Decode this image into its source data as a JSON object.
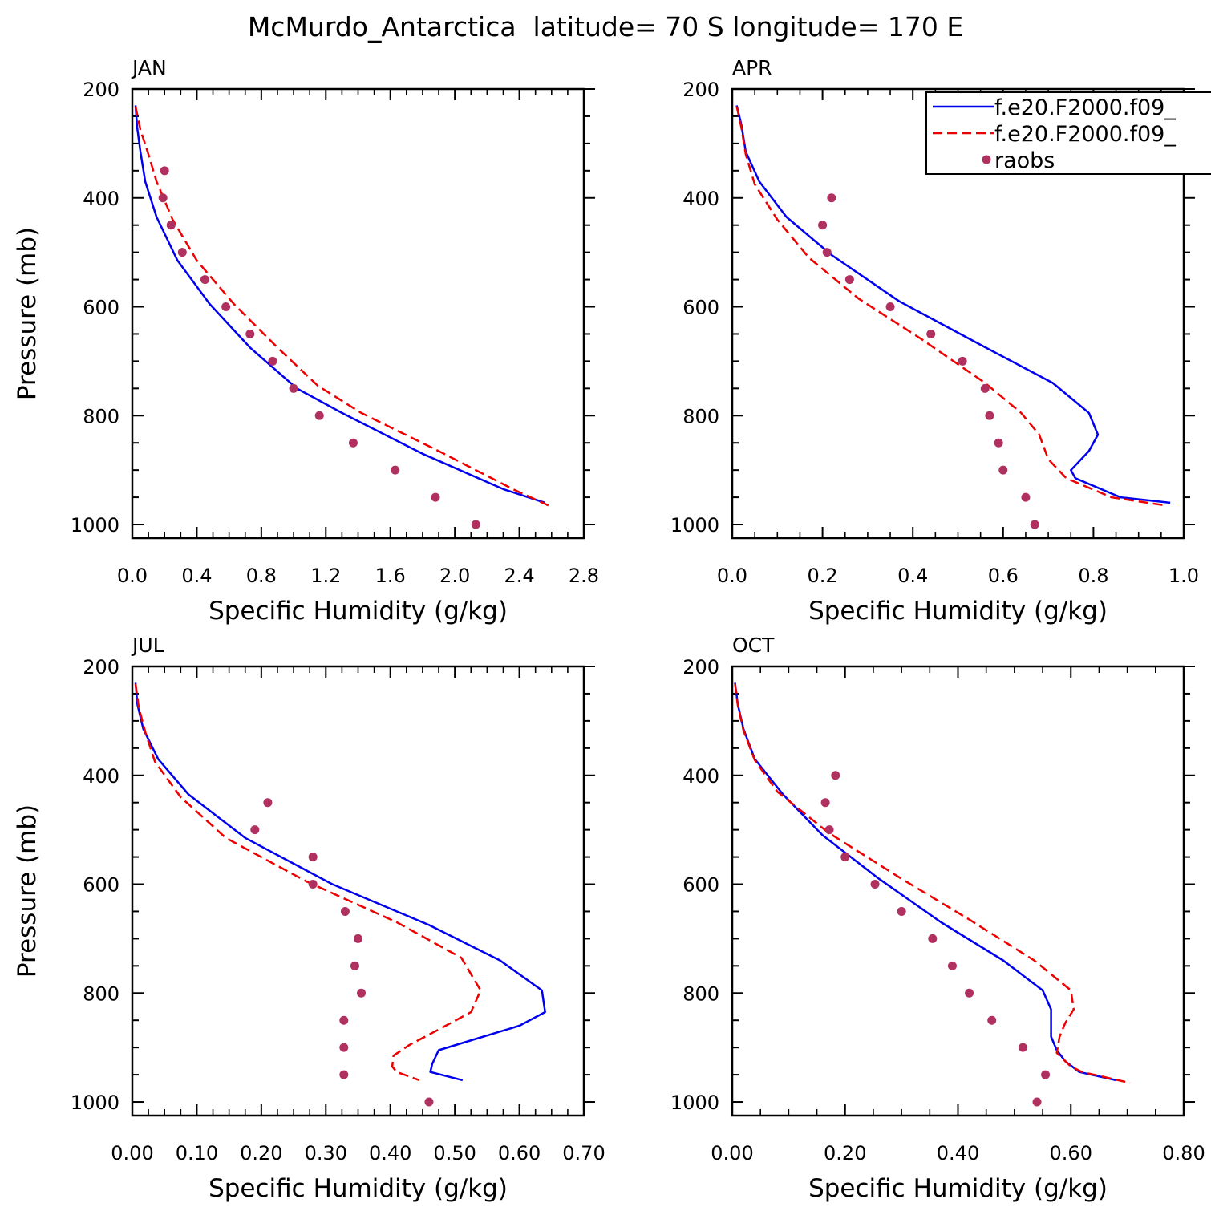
{
  "figure": {
    "title": "McMurdo_Antarctica  latitude= 70 S longitude= 170 E"
  },
  "legend": {
    "entries": [
      {
        "label": "f.e20.F2000.f09_",
        "color": "#0000ee",
        "style": "solid"
      },
      {
        "label": "f.e20.F2000.f09_",
        "color": "#ee0000",
        "style": "dashed"
      },
      {
        "label": "raobs",
        "color": "#b03060",
        "style": "marker"
      }
    ]
  },
  "chart_data": [
    {
      "type": "line",
      "panel": "JAN",
      "title": "JAN",
      "xlabel": "Specific Humidity (g/kg)",
      "ylabel": "Pressure (mb)",
      "xlim": [
        0,
        2.8
      ],
      "ylim": [
        1025,
        200
      ],
      "y_reversed": true,
      "xticks": [
        0,
        0.4,
        0.8,
        1.2,
        1.6,
        2.0,
        2.4,
        2.8
      ],
      "xtick_labels": [
        "0.0",
        "0.4",
        "0.8",
        "1.2",
        "1.6",
        "2.0",
        "2.4",
        "2.8"
      ],
      "yticks": [
        200,
        400,
        600,
        800,
        1000
      ],
      "ytick_labels": [
        "200",
        "400",
        "600",
        "800",
        "1000"
      ],
      "series": [
        {
          "color": "#0000ee",
          "style": "solid",
          "points": [
            [
              0.02,
              230
            ],
            [
              0.03,
              270
            ],
            [
              0.05,
              315
            ],
            [
              0.08,
              370
            ],
            [
              0.15,
              435
            ],
            [
              0.28,
              515
            ],
            [
              0.48,
              595
            ],
            [
              0.73,
              675
            ],
            [
              1.02,
              750
            ],
            [
              1.3,
              795
            ],
            [
              1.8,
              870
            ],
            [
              2.3,
              935
            ],
            [
              2.56,
              960
            ]
          ]
        },
        {
          "color": "#ee0000",
          "style": "dashed",
          "points": [
            [
              0.02,
              232
            ],
            [
              0.05,
              275
            ],
            [
              0.1,
              320
            ],
            [
              0.15,
              370
            ],
            [
              0.25,
              440
            ],
            [
              0.4,
              515
            ],
            [
              0.63,
              595
            ],
            [
              0.9,
              675
            ],
            [
              1.15,
              745
            ],
            [
              1.42,
              795
            ],
            [
              1.9,
              865
            ],
            [
              2.36,
              935
            ],
            [
              2.58,
              965
            ]
          ]
        },
        {
          "color": "#b03060",
          "style": "marker",
          "name": "raobs",
          "points": [
            [
              0.2,
              350
            ],
            [
              0.19,
              400
            ],
            [
              0.24,
              450
            ],
            [
              0.31,
              500
            ],
            [
              0.45,
              550
            ],
            [
              0.58,
              600
            ],
            [
              0.73,
              650
            ],
            [
              0.87,
              700
            ],
            [
              1.0,
              750
            ],
            [
              1.16,
              800
            ],
            [
              1.37,
              850
            ],
            [
              1.63,
              900
            ],
            [
              1.88,
              950
            ],
            [
              2.13,
              1000
            ]
          ]
        }
      ]
    },
    {
      "type": "line",
      "panel": "APR",
      "title": "APR",
      "xlabel": "Specific Humidity (g/kg)",
      "ylabel": "",
      "xlim": [
        0,
        1.0
      ],
      "ylim": [
        1025,
        200
      ],
      "y_reversed": true,
      "xticks": [
        0,
        0.2,
        0.4,
        0.6,
        0.8,
        1.0
      ],
      "xtick_labels": [
        "0.0",
        "0.2",
        "0.4",
        "0.6",
        "0.8",
        "1.0"
      ],
      "yticks": [
        200,
        400,
        600,
        800,
        1000
      ],
      "ytick_labels": [
        "200",
        "400",
        "600",
        "800",
        "1000"
      ],
      "series": [
        {
          "color": "#0000ee",
          "style": "solid",
          "points": [
            [
              0.01,
              230
            ],
            [
              0.02,
              265
            ],
            [
              0.03,
              315
            ],
            [
              0.06,
              370
            ],
            [
              0.12,
              435
            ],
            [
              0.22,
              505
            ],
            [
              0.37,
              590
            ],
            [
              0.55,
              670
            ],
            [
              0.71,
              740
            ],
            [
              0.79,
              795
            ],
            [
              0.81,
              835
            ],
            [
              0.79,
              865
            ],
            [
              0.75,
              900
            ],
            [
              0.76,
              915
            ],
            [
              0.86,
              950
            ],
            [
              0.97,
              960
            ]
          ]
        },
        {
          "color": "#ee0000",
          "style": "dashed",
          "points": [
            [
              0.01,
              232
            ],
            [
              0.02,
              270
            ],
            [
              0.03,
              320
            ],
            [
              0.05,
              375
            ],
            [
              0.1,
              440
            ],
            [
              0.17,
              510
            ],
            [
              0.28,
              585
            ],
            [
              0.42,
              660
            ],
            [
              0.56,
              740
            ],
            [
              0.64,
              795
            ],
            [
              0.68,
              835
            ],
            [
              0.7,
              880
            ],
            [
              0.74,
              915
            ],
            [
              0.84,
              950
            ],
            [
              0.96,
              965
            ]
          ]
        },
        {
          "color": "#b03060",
          "style": "marker",
          "name": "raobs",
          "points": [
            [
              0.22,
              400
            ],
            [
              0.2,
              450
            ],
            [
              0.21,
              500
            ],
            [
              0.26,
              550
            ],
            [
              0.35,
              600
            ],
            [
              0.44,
              650
            ],
            [
              0.51,
              700
            ],
            [
              0.56,
              750
            ],
            [
              0.57,
              800
            ],
            [
              0.59,
              850
            ],
            [
              0.6,
              900
            ],
            [
              0.65,
              950
            ],
            [
              0.67,
              1000
            ]
          ]
        }
      ]
    },
    {
      "type": "line",
      "panel": "JUL",
      "title": "JUL",
      "xlabel": "Specific Humidity (g/kg)",
      "ylabel": "Pressure (mb)",
      "xlim": [
        0,
        0.7
      ],
      "ylim": [
        1025,
        200
      ],
      "y_reversed": true,
      "xticks": [
        0,
        0.1,
        0.2,
        0.3,
        0.4,
        0.5,
        0.6,
        0.7
      ],
      "xtick_labels": [
        "0.00",
        "0.10",
        "0.20",
        "0.30",
        "0.40",
        "0.50",
        "0.60",
        "0.70"
      ],
      "yticks": [
        200,
        400,
        600,
        800,
        1000
      ],
      "ytick_labels": [
        "200",
        "400",
        "600",
        "800",
        "1000"
      ],
      "series": [
        {
          "color": "#0000ee",
          "style": "solid",
          "points": [
            [
              0.005,
              230
            ],
            [
              0.008,
              270
            ],
            [
              0.017,
              315
            ],
            [
              0.04,
              370
            ],
            [
              0.087,
              435
            ],
            [
              0.175,
              515
            ],
            [
              0.31,
              600
            ],
            [
              0.46,
              675
            ],
            [
              0.57,
              740
            ],
            [
              0.635,
              795
            ],
            [
              0.64,
              835
            ],
            [
              0.6,
              860
            ],
            [
              0.53,
              885
            ],
            [
              0.475,
              905
            ],
            [
              0.465,
              930
            ],
            [
              0.462,
              945
            ],
            [
              0.512,
              960
            ]
          ]
        },
        {
          "color": "#ee0000",
          "style": "dashed",
          "points": [
            [
              0.005,
              232
            ],
            [
              0.01,
              275
            ],
            [
              0.02,
              320
            ],
            [
              0.035,
              375
            ],
            [
              0.075,
              440
            ],
            [
              0.145,
              515
            ],
            [
              0.27,
              595
            ],
            [
              0.41,
              670
            ],
            [
              0.51,
              735
            ],
            [
              0.54,
              795
            ],
            [
              0.525,
              835
            ],
            [
              0.47,
              870
            ],
            [
              0.43,
              895
            ],
            [
              0.405,
              915
            ],
            [
              0.403,
              935
            ],
            [
              0.41,
              945
            ],
            [
              0.445,
              960
            ]
          ]
        },
        {
          "color": "#b03060",
          "style": "marker",
          "name": "raobs",
          "points": [
            [
              0.21,
              450
            ],
            [
              0.19,
              500
            ],
            [
              0.28,
              550
            ],
            [
              0.28,
              600
            ],
            [
              0.33,
              650
            ],
            [
              0.35,
              700
            ],
            [
              0.345,
              750
            ],
            [
              0.355,
              800
            ],
            [
              0.328,
              850
            ],
            [
              0.328,
              900
            ],
            [
              0.328,
              950
            ],
            [
              0.46,
              1000
            ]
          ]
        }
      ]
    },
    {
      "type": "line",
      "panel": "OCT",
      "title": "OCT",
      "xlabel": "Specific Humidity (g/kg)",
      "ylabel": "",
      "xlim": [
        0,
        0.8
      ],
      "ylim": [
        1025,
        200
      ],
      "y_reversed": true,
      "xticks": [
        0,
        0.2,
        0.4,
        0.6,
        0.8
      ],
      "xtick_labels": [
        "0.00",
        "0.20",
        "0.40",
        "0.60",
        "0.80"
      ],
      "yticks": [
        200,
        400,
        600,
        800,
        1000
      ],
      "ytick_labels": [
        "200",
        "400",
        "600",
        "800",
        "1000"
      ],
      "series": [
        {
          "color": "#0000ee",
          "style": "solid",
          "points": [
            [
              0.005,
              230
            ],
            [
              0.01,
              270
            ],
            [
              0.02,
              315
            ],
            [
              0.04,
              370
            ],
            [
              0.09,
              435
            ],
            [
              0.16,
              510
            ],
            [
              0.26,
              590
            ],
            [
              0.37,
              670
            ],
            [
              0.48,
              740
            ],
            [
              0.55,
              795
            ],
            [
              0.565,
              830
            ],
            [
              0.565,
              880
            ],
            [
              0.575,
              905
            ],
            [
              0.59,
              925
            ],
            [
              0.615,
              945
            ],
            [
              0.68,
              960
            ]
          ]
        },
        {
          "color": "#ee0000",
          "style": "dashed",
          "points": [
            [
              0.005,
              232
            ],
            [
              0.01,
              272
            ],
            [
              0.02,
              318
            ],
            [
              0.04,
              372
            ],
            [
              0.08,
              430
            ],
            [
              0.17,
              505
            ],
            [
              0.3,
              590
            ],
            [
              0.42,
              665
            ],
            [
              0.535,
              740
            ],
            [
              0.6,
              795
            ],
            [
              0.605,
              830
            ],
            [
              0.59,
              855
            ],
            [
              0.58,
              880
            ],
            [
              0.575,
              910
            ],
            [
              0.6,
              935
            ],
            [
              0.62,
              945
            ],
            [
              0.705,
              965
            ]
          ]
        },
        {
          "color": "#b03060",
          "style": "marker",
          "name": "raobs",
          "points": [
            [
              0.183,
              400
            ],
            [
              0.165,
              450
            ],
            [
              0.172,
              500
            ],
            [
              0.2,
              550
            ],
            [
              0.253,
              600
            ],
            [
              0.3,
              650
            ],
            [
              0.355,
              700
            ],
            [
              0.39,
              750
            ],
            [
              0.42,
              800
            ],
            [
              0.46,
              850
            ],
            [
              0.515,
              900
            ],
            [
              0.555,
              950
            ],
            [
              0.54,
              1000
            ]
          ]
        }
      ]
    }
  ]
}
